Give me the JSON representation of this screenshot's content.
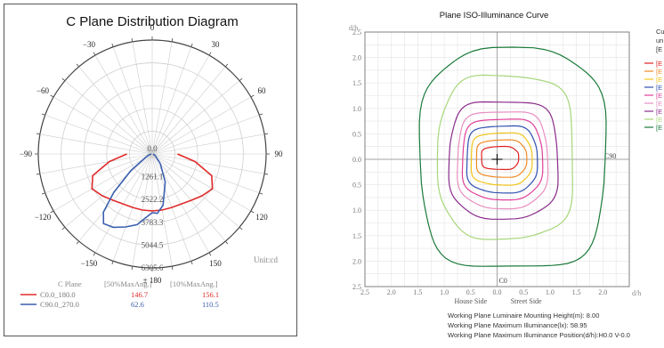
{
  "chart_data": [
    {
      "type": "polar-line",
      "title": "C Plane Distribution Diagram",
      "angle_labels": [
        {
          "deg": 180,
          "text": "± 180"
        },
        {
          "deg": -150,
          "text": "−150"
        },
        {
          "deg": 150,
          "text": "150"
        },
        {
          "deg": -120,
          "text": "−120"
        },
        {
          "deg": 120,
          "text": "120"
        },
        {
          "deg": -90,
          "text": "−90"
        },
        {
          "deg": 90,
          "text": "90"
        },
        {
          "deg": -60,
          "text": "−60"
        },
        {
          "deg": 60,
          "text": "60"
        },
        {
          "deg": -30,
          "text": "−30"
        },
        {
          "deg": 30,
          "text": "30"
        },
        {
          "deg": 0,
          "text": "0"
        }
      ],
      "radial_ticks": [
        "0.0",
        "1261.1",
        "2522.2",
        "3783.3",
        "5044.5",
        "6305.6"
      ],
      "radial_max": 6305.6,
      "unit_label": "Unit:cd",
      "series": [
        {
          "name": "C0.0_180.0",
          "color": "#e02b2b",
          "points": [
            [
              -90,
              1400
            ],
            [
              -80,
              2400
            ],
            [
              -70,
              3500
            ],
            [
              -60,
              3850
            ],
            [
              -50,
              3600
            ],
            [
              -40,
              3350
            ],
            [
              -30,
              3200
            ],
            [
              -20,
              3150
            ],
            [
              -10,
              3150
            ],
            [
              0,
              3150
            ],
            [
              10,
              3150
            ],
            [
              20,
              3150
            ],
            [
              30,
              3200
            ],
            [
              40,
              3350
            ],
            [
              50,
              3600
            ],
            [
              60,
              3850
            ],
            [
              70,
              3500
            ],
            [
              80,
              2400
            ],
            [
              90,
              1400
            ]
          ]
        },
        {
          "name": "C90.0_270.0",
          "color": "#3b5fae",
          "points": [
            [
              -90,
              50
            ],
            [
              -60,
              200
            ],
            [
              -40,
              700
            ],
            [
              -25,
              1700
            ],
            [
              -12,
              2900
            ],
            [
              -5,
              3300
            ],
            [
              0,
              3250
            ],
            [
              5,
              3500
            ],
            [
              12,
              4000
            ],
            [
              20,
              4300
            ],
            [
              28,
              4600
            ],
            [
              35,
              4700
            ],
            [
              40,
              4200
            ],
            [
              45,
              3000
            ],
            [
              52,
              1500
            ],
            [
              60,
              500
            ],
            [
              75,
              200
            ],
            [
              90,
              50
            ]
          ]
        }
      ],
      "legend": {
        "header": [
          "C Plane",
          "[50%MaxAng.]",
          "[10%MaxAng.]"
        ],
        "rows": [
          {
            "name": "C0.0_180.0",
            "v50": "146.7",
            "v10": "156.1",
            "color": "#e02b2b"
          },
          {
            "name": "C90.0_270.0",
            "v50": "62.6",
            "v10": "110.5",
            "color": "#3b5fae"
          }
        ]
      }
    },
    {
      "type": "contour",
      "title": "Plane ISO-Illuminance Curve",
      "ylabel": "d/h",
      "xlabel": "d/h",
      "x_ticks": [
        "2.5",
        "2.0",
        "1.5",
        "1.0",
        "0.5",
        "0.0",
        "0.5",
        "1.0",
        "1.5",
        "2.0"
      ],
      "x_tick_values": [
        -2.5,
        -2.0,
        -1.5,
        -1.0,
        -0.5,
        0.0,
        0.5,
        1.0,
        1.5,
        2.0
      ],
      "y_ticks": [
        "2.5",
        "2.0",
        "1.5",
        "1.0",
        "0.5",
        "0.0",
        "0.5",
        "1.0",
        "1.5",
        "2.0",
        "2.5"
      ],
      "y_tick_values": [
        2.5,
        2.0,
        1.5,
        1.0,
        0.5,
        0.0,
        -0.5,
        -1.0,
        -1.5,
        -2.0,
        -2.5
      ],
      "xlim": [
        -2.5,
        2.5
      ],
      "ylim": [
        -2.5,
        2.5
      ],
      "c0_label": "C0",
      "c90_label": "C90",
      "house_side": "House Side",
      "street_side": "Street Side",
      "legend_header": [
        "Cu",
        "un",
        "[E"
      ],
      "contours": [
        {
          "label": "[E",
          "color": "#e02020",
          "xmin": -0.3,
          "xmax": 0.4,
          "ymax": 0.25,
          "ymin": -0.2
        },
        {
          "label": "[E",
          "color": "#f08a24",
          "xmin": -0.4,
          "xmax": 0.55,
          "ymax": 0.38,
          "ymin": -0.35
        },
        {
          "label": "[E",
          "color": "#f2c51a",
          "xmin": -0.5,
          "xmax": 0.65,
          "ymax": 0.52,
          "ymin": -0.5
        },
        {
          "label": "[E",
          "color": "#3050b0",
          "xmin": -0.58,
          "xmax": 0.75,
          "ymax": 0.66,
          "ymin": -0.65
        },
        {
          "label": "[E",
          "color": "#e0409a",
          "xmin": -0.66,
          "xmax": 0.85,
          "ymax": 0.8,
          "ymin": -0.78
        },
        {
          "label": "[E",
          "color": "#e88ec0",
          "xmin": -0.75,
          "xmax": 0.95,
          "ymax": 0.95,
          "ymin": -0.95
        },
        {
          "label": "[E",
          "color": "#8a2a8a",
          "xmin": -0.9,
          "xmax": 1.15,
          "ymax": 1.15,
          "ymin": -1.15
        },
        {
          "label": "[E",
          "color": "#a6d67a",
          "xmin": -1.1,
          "xmax": 1.45,
          "ymax": 1.65,
          "ymin": -1.55
        },
        {
          "label": "[E",
          "color": "#1a7a3a",
          "xmin": -1.45,
          "xmax": 2.05,
          "ymax": 2.15,
          "ymin": -2.15
        }
      ],
      "max_marker": {
        "x": 0.0,
        "y": 0.0
      },
      "info": [
        "Working Plane Luminaire Mounting Height(m): 8.00",
        "Working Plane Maximum Illuminance(lx): 58.95",
        "Working Plane Maximum Illuminance Position(d/h):H0.0 V-0.0"
      ]
    }
  ]
}
